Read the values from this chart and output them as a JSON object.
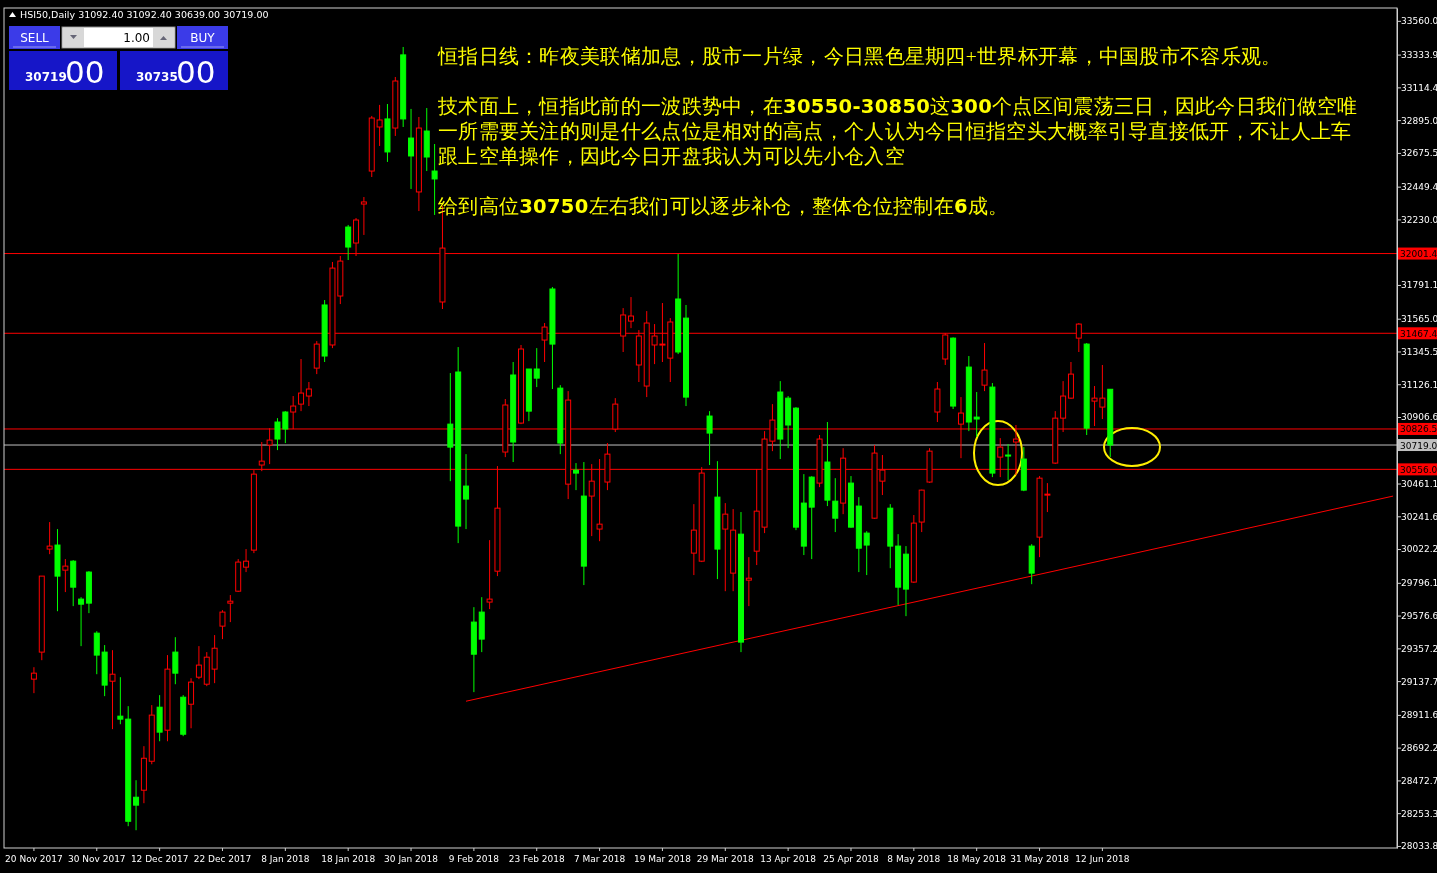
{
  "chart_data": {
    "type": "candlestick",
    "title": "HSI50,Daily  31092.40 31092.40 30639.00 30719.00",
    "categories": [
      "20 Nov 2017",
      null,
      null,
      null,
      null,
      null,
      null,
      null,
      "30 Nov 2017",
      null,
      null,
      null,
      null,
      null,
      null,
      null,
      "12 Dec 2017",
      null,
      null,
      null,
      null,
      null,
      null,
      null,
      "22 Dec 2017",
      null,
      null,
      null,
      null,
      null,
      null,
      null,
      "8 Jan 2018",
      null,
      null,
      null,
      null,
      null,
      null,
      null,
      "18 Jan 2018",
      null,
      null,
      null,
      null,
      null,
      null,
      null,
      "30 Jan 2018",
      null,
      null,
      null,
      null,
      null,
      null,
      null,
      "9 Feb 2018",
      null,
      null,
      null,
      null,
      null,
      null,
      null,
      "23 Feb 2018",
      null,
      null,
      null,
      null,
      null,
      null,
      null,
      "7 Mar 2018",
      null,
      null,
      null,
      null,
      null,
      null,
      null,
      "19 Mar 2018",
      null,
      null,
      null,
      null,
      null,
      null,
      null,
      "29 Mar 2018",
      null,
      null,
      null,
      null,
      null,
      null,
      null,
      "13 Apr 2018",
      null,
      null,
      null,
      null,
      null,
      null,
      null,
      "25 Apr 2018",
      null,
      null,
      null,
      null,
      null,
      null,
      null,
      "8 May 2018",
      null,
      null,
      null,
      null,
      null,
      null,
      null,
      "18 May 2018",
      null,
      null,
      null,
      null,
      null,
      null,
      null,
      "31 May 2018",
      null,
      null,
      null,
      null,
      null,
      null,
      null,
      "12 Jun 2018",
      null,
      null,
      null,
      null,
      null,
      null,
      null,
      null,
      null,
      null,
      null,
      null,
      null,
      null,
      null,
      null,
      null,
      null,
      null,
      null,
      null,
      null,
      null,
      null,
      null,
      null,
      null,
      null,
      null,
      null,
      null,
      null,
      null,
      null,
      null,
      null,
      null
    ],
    "ohlc": [
      [
        29151,
        29231,
        29057,
        29191
      ],
      [
        29332,
        29841,
        29278,
        29841
      ],
      [
        30022,
        30203,
        29988,
        30042
      ],
      [
        30049,
        30156,
        29606,
        29841
      ],
      [
        29881,
        29955,
        29734,
        29908
      ],
      [
        29941,
        29948,
        29640,
        29767
      ],
      [
        29687,
        29700,
        29372,
        29653
      ],
      [
        29868,
        29874,
        29593,
        29660
      ],
      [
        29459,
        29472,
        29184,
        29312
      ],
      [
        29332,
        29379,
        29037,
        29111
      ],
      [
        29137,
        29345,
        28816,
        29184
      ],
      [
        28903,
        29164,
        28849,
        28883
      ],
      [
        28883,
        28970,
        28166,
        28199
      ],
      [
        28360,
        28474,
        28139,
        28307
      ],
      [
        28407,
        28702,
        28320,
        28621
      ],
      [
        28601,
        28977,
        28581,
        28910
      ],
      [
        28963,
        29044,
        28735,
        28796
      ],
      [
        28809,
        29312,
        28735,
        29218
      ],
      [
        29332,
        29432,
        29117,
        29191
      ],
      [
        29030,
        29044,
        28769,
        28782
      ],
      [
        28983,
        29157,
        28822,
        29131
      ],
      [
        29164,
        29372,
        29151,
        29245
      ],
      [
        29117,
        29332,
        29104,
        29298
      ],
      [
        29218,
        29446,
        29124,
        29358
      ],
      [
        29506,
        29613,
        29419,
        29600
      ],
      [
        29660,
        29714,
        29533,
        29673
      ],
      [
        29740,
        29955,
        29735,
        29935
      ],
      [
        29901,
        30022,
        29868,
        29941
      ],
      [
        30015,
        30551,
        29995,
        30524
      ],
      [
        30585,
        30739,
        30544,
        30611
      ],
      [
        30719,
        30832,
        30591,
        30752
      ],
      [
        30873,
        30899,
        30685,
        30759
      ],
      [
        30940,
        30946,
        30732,
        30826
      ],
      [
        30940,
        31047,
        30826,
        30980
      ],
      [
        30993,
        31295,
        30946,
        31067
      ],
      [
        31047,
        31141,
        30980,
        31094
      ],
      [
        31234,
        31415,
        31194,
        31395
      ],
      [
        31657,
        31690,
        31275,
        31315
      ],
      [
        31389,
        31945,
        31368,
        31904
      ],
      [
        31717,
        31985,
        31663,
        31951
      ],
      [
        32179,
        32193,
        31958,
        32045
      ],
      [
        32072,
        32239,
        31985,
        32226
      ],
      [
        32333,
        32380,
        32126,
        32347
      ],
      [
        32554,
        32923,
        32514,
        32909
      ],
      [
        32849,
        32997,
        32722,
        32896
      ],
      [
        32903,
        33003,
        32615,
        32682
      ],
      [
        32842,
        33184,
        32789,
        33157
      ],
      [
        33332,
        33385,
        32849,
        32903
      ],
      [
        32775,
        32970,
        32434,
        32655
      ],
      [
        32414,
        32916,
        32286,
        32842
      ],
      [
        32822,
        32976,
        32554,
        32648
      ],
      [
        32554,
        32735,
        32260,
        32501
      ],
      [
        31677,
        32320,
        31630,
        32038
      ],
      [
        30859,
        31201,
        30477,
        30705
      ],
      [
        31208,
        31375,
        30062,
        30176
      ],
      [
        30444,
        30658,
        30156,
        30357
      ],
      [
        29533,
        29633,
        29064,
        29318
      ],
      [
        29600,
        29700,
        29332,
        29419
      ],
      [
        29667,
        30082,
        29620,
        29687
      ],
      [
        29874,
        30578,
        29841,
        30296
      ],
      [
        30672,
        31027,
        30638,
        30987
      ],
      [
        31188,
        31275,
        30605,
        30739
      ],
      [
        30866,
        31389,
        30859,
        31362
      ],
      [
        31228,
        31228,
        30879,
        30946
      ],
      [
        31228,
        31368,
        31107,
        31167
      ],
      [
        31422,
        31536,
        31275,
        31509
      ],
      [
        31764,
        31777,
        31094,
        31395
      ],
      [
        31100,
        31120,
        30658,
        30732
      ],
      [
        30457,
        31080,
        30357,
        31020
      ],
      [
        30551,
        30598,
        30417,
        30531
      ],
      [
        30377,
        30605,
        29781,
        29908
      ],
      [
        30377,
        30591,
        30109,
        30477
      ],
      [
        30156,
        30625,
        30075,
        30189
      ],
      [
        30471,
        30732,
        30417,
        30658
      ],
      [
        30826,
        31033,
        30806,
        30993
      ],
      [
        31449,
        31636,
        31342,
        31590
      ],
      [
        31549,
        31710,
        31502,
        31583
      ],
      [
        31255,
        31489,
        31141,
        31449
      ],
      [
        31114,
        31616,
        31040,
        31536
      ],
      [
        31389,
        31529,
        31261,
        31449
      ],
      [
        31389,
        31670,
        31275,
        31395
      ],
      [
        31301,
        31569,
        31141,
        31543
      ],
      [
        31697,
        31998,
        31328,
        31342
      ],
      [
        31569,
        31657,
        30980,
        31040
      ],
      [
        29995,
        30323,
        29848,
        30149
      ],
      [
        29941,
        30571,
        29935,
        30531
      ],
      [
        30913,
        30946,
        30585,
        30799
      ],
      [
        30370,
        30611,
        29821,
        30022
      ],
      [
        30156,
        30330,
        29740,
        30256
      ],
      [
        29861,
        30290,
        29740,
        30149
      ],
      [
        30122,
        30270,
        29332,
        29399
      ],
      [
        29814,
        29968,
        29640,
        29827
      ],
      [
        30008,
        30558,
        29915,
        30276
      ],
      [
        30169,
        30812,
        30129,
        30759
      ],
      [
        30745,
        30993,
        30678,
        30886
      ],
      [
        31074,
        31147,
        30625,
        30759
      ],
      [
        31033,
        31047,
        30698,
        30853
      ],
      [
        30966,
        30973,
        30149,
        30169
      ],
      [
        30330,
        30524,
        29982,
        30042
      ],
      [
        30504,
        30510,
        29955,
        30303
      ],
      [
        30464,
        30786,
        30437,
        30759
      ],
      [
        30605,
        30873,
        30310,
        30350
      ],
      [
        30343,
        30497,
        30136,
        30229
      ],
      [
        30330,
        30698,
        30256,
        30631
      ],
      [
        30464,
        30511,
        30165,
        30169
      ],
      [
        30310,
        30370,
        29868,
        30028
      ],
      [
        30129,
        30142,
        29848,
        30049
      ],
      [
        30229,
        30719,
        30225,
        30665
      ],
      [
        30477,
        30652,
        30384,
        30551
      ],
      [
        30296,
        30323,
        29894,
        30042
      ],
      [
        30042,
        30122,
        29647,
        29767
      ],
      [
        29988,
        30042,
        29573,
        29754
      ],
      [
        29801,
        30250,
        29795,
        30196
      ],
      [
        30203,
        30420,
        30136,
        30417
      ],
      [
        30471,
        30698,
        30465,
        30678
      ],
      [
        30940,
        31141,
        30873,
        31094
      ],
      [
        31295,
        31469,
        31255,
        31456
      ],
      [
        31435,
        31440,
        30960,
        30980
      ],
      [
        30859,
        31040,
        30631,
        30933
      ],
      [
        31241,
        31315,
        30812,
        30873
      ],
      [
        30906,
        31074,
        30772,
        30893
      ],
      [
        31120,
        31402,
        31080,
        31221
      ],
      [
        31107,
        31134,
        30504,
        30531
      ],
      [
        30638,
        30765,
        30504,
        30705
      ],
      [
        30652,
        30725,
        30484,
        30645
      ],
      [
        30739,
        30853,
        30518,
        30759
      ],
      [
        30625,
        30705,
        30410,
        30417
      ],
      [
        30042,
        30055,
        29787,
        29861
      ],
      [
        30102,
        30511,
        29968,
        30497
      ],
      [
        30384,
        30464,
        30270,
        30390
      ],
      [
        30598,
        30946,
        30592,
        30899
      ],
      [
        30899,
        31147,
        30806,
        31047
      ],
      [
        31033,
        31275,
        31028,
        31194
      ],
      [
        31435,
        31536,
        31342,
        31529
      ],
      [
        31395,
        31402,
        30786,
        30832
      ],
      [
        31013,
        31114,
        30846,
        31033
      ],
      [
        30973,
        31255,
        30893,
        31033
      ],
      [
        31092.4,
        31092.4,
        30639,
        30719
      ],
      null,
      null,
      null,
      null,
      null,
      null,
      null,
      null,
      null,
      null,
      null,
      null,
      null,
      null,
      null,
      null,
      null,
      null,
      null,
      null,
      null,
      null,
      null,
      null,
      null,
      null,
      null,
      null,
      null,
      null,
      null,
      null,
      null,
      null,
      null,
      null
    ],
    "colors": [
      "#ff0000",
      "#ff0000",
      "#ff0000",
      "#00ff00",
      "#ff0000",
      "#00ff00",
      "#00ff00",
      "#00ff00",
      "#00ff00",
      "#00ff00",
      "#ff0000",
      "#00ff00",
      "#00ff00",
      "#00ff00",
      "#ff0000",
      "#ff0000",
      "#00ff00",
      "#ff0000",
      "#00ff00",
      "#00ff00",
      "#ff0000",
      "#ff0000",
      "#ff0000",
      "#ff0000",
      "#ff0000",
      "#ff0000",
      "#ff0000",
      "#ff0000",
      "#ff0000",
      "#ff0000",
      "#ff0000",
      "#00ff00",
      "#00ff00",
      "#ff0000",
      "#ff0000",
      "#ff0000",
      "#ff0000",
      "#00ff00",
      "#ff0000",
      "#ff0000",
      "#00ff00",
      "#ff0000",
      "#ff0000",
      "#ff0000",
      "#ff0000",
      "#00ff00",
      "#ff0000",
      "#00ff00",
      "#00ff00",
      "#ff0000",
      "#00ff00",
      "#00ff00",
      "#ff0000",
      "#00ff00",
      "#00ff00",
      "#00ff00",
      "#00ff00",
      "#00ff00",
      "#ff0000",
      "#ff0000",
      "#ff0000",
      "#00ff00",
      "#ff0000",
      "#00ff00",
      "#00ff00",
      "#ff0000",
      "#00ff00",
      "#00ff00",
      "#ff0000",
      "#00ff00",
      "#00ff00",
      "#ff0000",
      "#ff0000",
      "#ff0000",
      "#ff0000",
      "#ff0000",
      "#ff0000",
      "#ff0000",
      "#ff0000",
      "#ff0000",
      "#ff0000",
      "#ff0000",
      "#00ff00",
      "#00ff00",
      "#ff0000",
      "#ff0000",
      "#00ff00",
      "#00ff00",
      "#ff0000",
      "#ff0000",
      "#00ff00",
      "#ff0000",
      "#ff0000",
      "#ff0000",
      "#ff0000",
      "#00ff00",
      "#00ff00",
      "#00ff00",
      "#00ff00",
      "#00ff00",
      "#ff0000",
      "#00ff00",
      "#00ff00",
      "#ff0000",
      "#00ff00",
      "#00ff00",
      "#00ff00",
      "#ff0000",
      "#ff0000",
      "#00ff00",
      "#00ff00",
      "#00ff00",
      "#ff0000",
      "#ff0000",
      "#ff0000",
      "#ff0000",
      "#ff0000",
      "#00ff00",
      "#ff0000",
      "#00ff00",
      "#00ff00",
      "#ff0000",
      "#00ff00",
      "#ff0000",
      "#00ff00",
      "#ff0000",
      "#00ff00",
      "#00ff00",
      "#ff0000",
      "#ff0000",
      "#ff0000",
      "#ff0000",
      "#ff0000",
      "#ff0000",
      "#00ff00",
      "#ff0000",
      "#ff0000",
      "#00ff00",
      null,
      null,
      null,
      null,
      null,
      null,
      null,
      null,
      null,
      null,
      null,
      null,
      null,
      null,
      null,
      null,
      null,
      null,
      null,
      null,
      null,
      null,
      null,
      null,
      null,
      null,
      null,
      null,
      null,
      null,
      null,
      null,
      null,
      null,
      null,
      null
    ],
    "series": [
      {
        "type": "line",
        "color": "#ff0000",
        "values": [
          null,
          null,
          null,
          null,
          null,
          null,
          null,
          null,
          null,
          null,
          null,
          null,
          null,
          null,
          null,
          null,
          null,
          null,
          null,
          null,
          null,
          null,
          null,
          null,
          null,
          null,
          null,
          null,
          null,
          null,
          null,
          null,
          null,
          null,
          null,
          null,
          null,
          null,
          null,
          null,
          null,
          null,
          null,
          null,
          null,
          null,
          null,
          null,
          null,
          null,
          null,
          null,
          null,
          null,
          null,
          29003,
          null,
          null,
          null,
          null,
          null,
          null,
          null,
          null,
          null,
          null,
          null,
          null,
          null,
          null,
          null,
          null,
          null,
          null,
          null,
          null,
          null,
          null,
          null,
          null,
          null,
          null,
          null,
          null,
          null,
          null,
          null,
          null,
          null,
          null,
          null,
          null,
          null,
          null,
          null,
          null,
          null,
          null,
          null,
          null,
          null,
          null,
          null,
          null,
          null,
          null,
          null,
          null,
          null,
          null,
          null,
          null,
          null,
          null,
          null,
          null,
          null,
          null,
          null,
          null,
          null,
          null,
          null,
          null,
          null,
          null,
          null,
          null,
          null,
          null,
          null,
          null,
          null,
          null,
          null,
          null,
          null,
          null,
          null,
          null,
          null,
          null,
          null,
          null,
          null,
          null,
          null,
          null,
          null,
          null,
          null,
          null,
          null,
          null,
          null,
          null,
          null,
          null,
          null,
          null,
          null,
          null,
          null,
          null,
          null,
          null,
          null,
          null,
          null,
          null,
          null,
          null,
          null,
          30377
        ]
      }
    ],
    "ylim": [
      28020,
      33646
    ],
    "yticks": [
      {
        "value": 33560,
        "label": "33560.0"
      },
      {
        "value": 33333.9,
        "label": "33333.9"
      },
      {
        "value": 33114.4,
        "label": "33114.4"
      },
      {
        "value": 32895,
        "label": "32895.0"
      },
      {
        "value": 32675.5,
        "label": "32675.5"
      },
      {
        "value": 32449.4,
        "label": "32449.4"
      },
      {
        "value": 32230,
        "label": "32230.0"
      },
      {
        "value": 31791.1,
        "label": "31791.1"
      },
      {
        "value": 31565,
        "label": "31565.0"
      },
      {
        "value": 31345.5,
        "label": "31345.5"
      },
      {
        "value": 31126.1,
        "label": "31126.1"
      },
      {
        "value": 30906.6,
        "label": "30906.6"
      },
      {
        "value": 30461.1,
        "label": "30461.1"
      },
      {
        "value": 30241.6,
        "label": "30241.6"
      },
      {
        "value": 30022.2,
        "label": "30022.2"
      },
      {
        "value": 29796.1,
        "label": "29796.1"
      },
      {
        "value": 29576.6,
        "label": "29576.6"
      },
      {
        "value": 29357.2,
        "label": "29357.2"
      },
      {
        "value": 29137.7,
        "label": "29137.7"
      },
      {
        "value": 28911.6,
        "label": "28911.6"
      },
      {
        "value": 28692.2,
        "label": "28692.2"
      },
      {
        "value": 28472.7,
        "label": "28472.7"
      },
      {
        "value": 28253.3,
        "label": "28253.3"
      },
      {
        "value": 28033.8,
        "label": "28033.8"
      }
    ],
    "ref_lines": [
      {
        "axis": "y",
        "value": 32001.4,
        "label": "32001.4",
        "color": "#ff0000"
      },
      {
        "axis": "y",
        "value": 31467.4,
        "label": "31467.4",
        "color": "#ff0000"
      },
      {
        "axis": "y",
        "value": 30826.5,
        "label": "30826.5",
        "color": "#ff0000"
      },
      {
        "axis": "y",
        "value": 30719,
        "label": "30719.0",
        "color": "#c0c0c0"
      },
      {
        "axis": "y",
        "value": 30556,
        "label": "30556.0",
        "color": "#ff0000"
      }
    ],
    "annotations": [
      "恒指日线：昨夜美联储加息，股市一片绿，今日黑色星期四+世界杯开幕，中国股市不容乐观。",
      "技术面上，恒指此前的一波跌势中，在30550-30850这300个点区间震荡三日，因此今日我们做空唯一所需要关注的则是什么点位是相对的高点，个人认为今日恒指空头大概率引导直接低开，不让人上车跟上空单操作，因此今日开盘我认为可以先小仓入空",
      "给到高位30750左右我们可以逐步补仓，整体仓位控制在6成。",
      "SELL",
      "1.00",
      "BUY",
      "30719",
      "00",
      "30735",
      "00"
    ],
    "grid": false
  }
}
